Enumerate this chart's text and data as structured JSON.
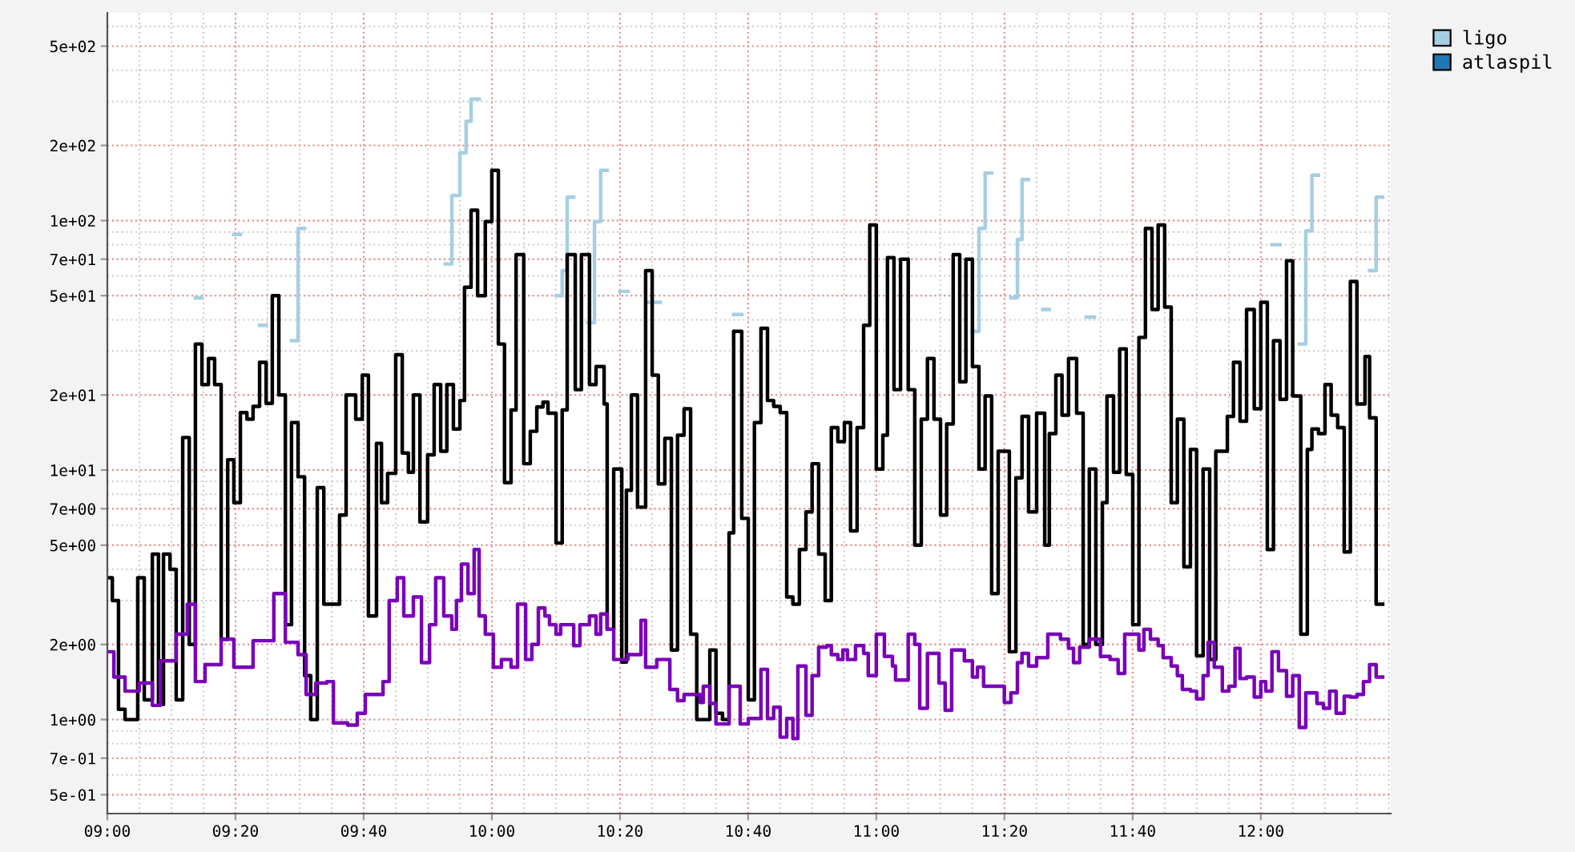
{
  "chart_data": {
    "type": "step",
    "log": "y",
    "grid": true,
    "legend": "top right",
    "line_style": "solid",
    "marker": "none",
    "xlim": [
      9.0,
      12.338
    ],
    "ylim": [
      0.42,
      680
    ],
    "xticks": [
      {
        "value": 9.0,
        "label": "09:00"
      },
      {
        "value": 9.3333,
        "label": "09:20"
      },
      {
        "value": 9.6667,
        "label": "09:40"
      },
      {
        "value": 10.0,
        "label": "10:00"
      },
      {
        "value": 10.3333,
        "label": "10:20"
      },
      {
        "value": 10.6667,
        "label": "10:40"
      },
      {
        "value": 11.0,
        "label": "11:00"
      },
      {
        "value": 11.3333,
        "label": "11:20"
      },
      {
        "value": 11.6667,
        "label": "11:40"
      },
      {
        "value": 12.0,
        "label": "12:00"
      }
    ],
    "yticks": [
      {
        "value": 0.5,
        "label": "5e-01"
      },
      {
        "value": 0.7,
        "label": "7e-01"
      },
      {
        "value": 1,
        "label": "1e+00"
      },
      {
        "value": 2,
        "label": "2e+00"
      },
      {
        "value": 5,
        "label": "5e+00"
      },
      {
        "value": 7,
        "label": "7e+00"
      },
      {
        "value": 10,
        "label": "1e+01"
      },
      {
        "value": 20,
        "label": "2e+01"
      },
      {
        "value": 50,
        "label": "5e+01"
      },
      {
        "value": 70,
        "label": "7e+01"
      },
      {
        "value": 100,
        "label": "1e+02"
      },
      {
        "value": 200,
        "label": "2e+02"
      },
      {
        "value": 500,
        "label": "5e+02"
      }
    ],
    "series": [
      {
        "name": "ligo",
        "color": "#a6cee3",
        "x": [
          9.229,
          9.246,
          9.329,
          9.346,
          9.396,
          9.413,
          9.479,
          9.496,
          9.513,
          9.879,
          9.896,
          9.917,
          9.933,
          9.946,
          9.967,
          10.167,
          10.183,
          10.196,
          10.213,
          10.25,
          10.267,
          10.283,
          10.3,
          10.333,
          10.354,
          10.408,
          10.438,
          10.629,
          10.65,
          11.25,
          11.267,
          11.283,
          11.3,
          11.35,
          11.367,
          11.379,
          11.396,
          11.433,
          11.45,
          11.546,
          11.567,
          12.029,
          12.05,
          12.1,
          12.117,
          12.133,
          12.15,
          12.283,
          12.3,
          12.317
        ],
        "values": [
          49,
          null,
          88,
          null,
          38,
          null,
          33,
          93,
          null,
          67,
          126,
          187,
          250,
          307,
          null,
          50,
          63,
          124,
          null,
          39,
          99,
          159,
          null,
          52,
          null,
          47,
          null,
          42,
          null,
          36,
          93,
          155,
          null,
          49,
          84,
          146,
          null,
          44,
          null,
          41,
          null,
          80,
          null,
          32,
          91,
          152,
          null,
          63,
          124,
          124
        ]
      },
      {
        "name": "atlaspil",
        "color": "#1f78b4"
      },
      {
        "color": "#000000",
        "x": [
          9.0,
          9.013,
          9.029,
          9.046,
          9.079,
          9.096,
          9.117,
          9.133,
          9.146,
          9.163,
          9.179,
          9.196,
          9.213,
          9.229,
          9.246,
          9.263,
          9.279,
          9.296,
          9.313,
          9.329,
          9.346,
          9.363,
          9.379,
          9.396,
          9.413,
          9.429,
          9.446,
          9.463,
          9.479,
          9.496,
          9.513,
          9.529,
          9.546,
          9.563,
          9.604,
          9.621,
          9.646,
          9.663,
          9.679,
          9.7,
          9.713,
          9.729,
          9.75,
          9.767,
          9.783,
          9.796,
          9.813,
          9.833,
          9.85,
          9.867,
          9.883,
          9.9,
          9.917,
          9.929,
          9.946,
          9.963,
          9.983,
          10.0,
          10.017,
          10.033,
          10.05,
          10.063,
          10.083,
          10.1,
          10.117,
          10.133,
          10.146,
          10.167,
          10.183,
          10.196,
          10.217,
          10.233,
          10.254,
          10.271,
          10.292,
          10.3,
          10.317,
          10.338,
          10.35,
          10.363,
          10.379,
          10.4,
          10.417,
          10.433,
          10.45,
          10.467,
          10.483,
          10.5,
          10.517,
          10.533,
          10.567,
          10.583,
          10.6,
          10.617,
          10.629,
          10.65,
          10.667,
          10.683,
          10.7,
          10.717,
          10.733,
          10.75,
          10.767,
          10.783,
          10.8,
          10.817,
          10.833,
          10.85,
          10.867,
          10.883,
          10.9,
          10.917,
          10.933,
          10.95,
          10.967,
          10.983,
          11.0,
          11.017,
          11.029,
          11.046,
          11.063,
          11.083,
          11.1,
          11.117,
          11.133,
          11.15,
          11.167,
          11.183,
          11.2,
          11.217,
          11.233,
          11.25,
          11.267,
          11.283,
          11.3,
          11.317,
          11.346,
          11.363,
          11.379,
          11.396,
          11.417,
          11.438,
          11.45,
          11.467,
          11.483,
          11.5,
          11.521,
          11.538,
          11.554,
          11.571,
          11.588,
          11.6,
          11.617,
          11.633,
          11.65,
          11.667,
          11.683,
          11.7,
          11.717,
          11.733,
          11.75,
          11.767,
          11.783,
          11.8,
          11.817,
          11.833,
          11.85,
          11.867,
          11.883,
          11.913,
          11.929,
          11.946,
          11.963,
          11.983,
          12.0,
          12.017,
          12.033,
          12.05,
          12.067,
          12.083,
          12.104,
          12.121,
          12.133,
          12.15,
          12.167,
          12.183,
          12.2,
          12.217,
          12.233,
          12.25,
          12.271,
          12.283,
          12.3,
          12.317
        ],
        "values": [
          3.7,
          3.0,
          1.1,
          1.0,
          3.7,
          1.2,
          4.6,
          1.15,
          4.6,
          4.0,
          1.2,
          13.5,
          2.0,
          32,
          22,
          28,
          22,
          2.1,
          11,
          7.4,
          17,
          16,
          18,
          27,
          18.5,
          50,
          20,
          2.4,
          15.5,
          9.4,
          1.5,
          1.0,
          8.5,
          2.9,
          6.6,
          20,
          16,
          24,
          2.6,
          12.8,
          7.4,
          9.7,
          29,
          11.7,
          9.8,
          20,
          6.2,
          11.5,
          22,
          11.9,
          22,
          14.6,
          19,
          54,
          110,
          50,
          99,
          159,
          32,
          8.9,
          17.4,
          73,
          10.6,
          14.3,
          17.9,
          18.7,
          16.9,
          5.1,
          17.4,
          73,
          21,
          73,
          22,
          26,
          18.4,
          2.3,
          10.1,
          1.7,
          8.3,
          20,
          7.1,
          63,
          24,
          8.8,
          13.4,
          1.9,
          13.8,
          17.6,
          2.2,
          1.0,
          1.9,
          1.06,
          1.0,
          5.6,
          36,
          6.4,
          1.2,
          15.5,
          37,
          19,
          18,
          17,
          3.1,
          2.9,
          4.8,
          6.8,
          10.6,
          4.6,
          3.0,
          14.8,
          13.0,
          15.5,
          5.7,
          14.8,
          38,
          96,
          10.1,
          13.8,
          71,
          21,
          70,
          21,
          5.0,
          16,
          28,
          16,
          6.6,
          15.3,
          73,
          22.6,
          70,
          26,
          10.1,
          19.8,
          3.2,
          11.9,
          1.87,
          9.3,
          16.4,
          6.8,
          16.9,
          5.0,
          14,
          24,
          16.6,
          28,
          16.9,
          2.0,
          10.1,
          2.0,
          7.4,
          19.8,
          9.8,
          30.6,
          9.6,
          2.4,
          34,
          93,
          44,
          96,
          45,
          7.4,
          16,
          4.1,
          12.1,
          1.8,
          10.1,
          1.74,
          11.9,
          16.4,
          27,
          15.7,
          44,
          17.6,
          47,
          4.8,
          33,
          19.2,
          69,
          19.8,
          2.2,
          12.1,
          14.6,
          14,
          22,
          16.6,
          14.8,
          4.7,
          57,
          18.4,
          28.5,
          16.2,
          2.9,
          2.9
        ]
      },
      {
        "color": "#7a00b8",
        "x": [
          9.0,
          9.017,
          9.046,
          9.083,
          9.117,
          9.138,
          9.179,
          9.208,
          9.229,
          9.254,
          9.296,
          9.329,
          9.379,
          9.433,
          9.463,
          9.496,
          9.517,
          9.542,
          9.571,
          9.588,
          9.625,
          9.65,
          9.671,
          9.717,
          9.733,
          9.754,
          9.771,
          9.796,
          9.817,
          9.838,
          9.854,
          9.875,
          9.896,
          9.908,
          9.921,
          9.938,
          9.954,
          9.967,
          9.983,
          10.004,
          10.025,
          10.05,
          10.067,
          10.088,
          10.104,
          10.121,
          10.138,
          10.15,
          10.167,
          10.179,
          10.213,
          10.229,
          10.254,
          10.271,
          10.283,
          10.3,
          10.317,
          10.354,
          10.388,
          10.4,
          10.429,
          10.463,
          10.483,
          10.5,
          10.542,
          10.55,
          10.567,
          10.583,
          10.617,
          10.646,
          10.667,
          10.7,
          10.717,
          10.733,
          10.75,
          10.767,
          10.783,
          10.796,
          10.817,
          10.833,
          10.85,
          10.871,
          10.883,
          10.9,
          10.913,
          10.925,
          10.946,
          10.967,
          10.979,
          11.0,
          11.021,
          11.042,
          11.05,
          11.083,
          11.1,
          11.113,
          11.133,
          11.163,
          11.179,
          11.196,
          11.229,
          11.25,
          11.263,
          11.279,
          11.333,
          11.35,
          11.367,
          11.379,
          11.396,
          11.417,
          11.446,
          11.479,
          11.5,
          11.513,
          11.529,
          11.554,
          11.583,
          11.608,
          11.629,
          11.646,
          11.683,
          11.696,
          11.713,
          11.733,
          11.746,
          11.767,
          11.783,
          11.796,
          11.817,
          11.833,
          11.85,
          11.863,
          11.879,
          11.9,
          11.917,
          11.933,
          11.946,
          11.963,
          11.983,
          12.0,
          12.013,
          12.029,
          12.046,
          12.067,
          12.083,
          12.1,
          12.117,
          12.146,
          12.163,
          12.179,
          12.196,
          12.217,
          12.233,
          12.25,
          12.267,
          12.283,
          12.3,
          12.317
        ],
        "values": [
          1.87,
          1.48,
          1.3,
          1.4,
          1.14,
          1.72,
          2.2,
          2.9,
          1.42,
          1.66,
          2.1,
          1.62,
          2.07,
          3.2,
          2.04,
          1.82,
          1.26,
          1.4,
          1.42,
          0.97,
          0.95,
          1.06,
          1.26,
          1.42,
          3.0,
          3.7,
          2.6,
          3.1,
          1.69,
          2.4,
          3.7,
          2.6,
          2.3,
          3.0,
          4.2,
          3.2,
          4.8,
          2.6,
          2.2,
          1.62,
          1.74,
          1.62,
          2.9,
          1.74,
          2.0,
          2.8,
          2.6,
          2.4,
          2.2,
          2.4,
          1.98,
          2.4,
          2.6,
          2.2,
          2.65,
          2.3,
          1.74,
          1.82,
          2.5,
          1.62,
          1.74,
          1.32,
          1.19,
          1.26,
          1.17,
          1.36,
          1.16,
          0.96,
          1.36,
          0.96,
          1.01,
          1.59,
          1.01,
          1.12,
          0.85,
          1.01,
          0.84,
          1.64,
          1.04,
          1.5,
          1.95,
          1.98,
          1.82,
          1.74,
          1.9,
          1.74,
          1.98,
          1.84,
          1.5,
          2.2,
          1.79,
          1.64,
          1.44,
          2.2,
          2.0,
          1.11,
          1.84,
          1.4,
          1.09,
          1.9,
          1.72,
          1.48,
          1.62,
          1.36,
          1.17,
          1.28,
          1.69,
          1.84,
          1.64,
          1.77,
          2.2,
          2.1,
          1.93,
          1.69,
          1.95,
          2.1,
          1.79,
          1.74,
          1.53,
          2.2,
          1.9,
          2.3,
          2.1,
          1.98,
          1.77,
          1.64,
          1.5,
          1.32,
          1.3,
          1.21,
          1.5,
          2.04,
          1.62,
          1.3,
          1.36,
          1.93,
          1.46,
          1.48,
          1.23,
          1.42,
          1.3,
          1.87,
          1.57,
          1.24,
          1.5,
          0.93,
          1.28,
          1.16,
          1.11,
          1.3,
          1.06,
          1.24,
          1.23,
          1.26,
          1.42,
          1.66,
          1.48,
          1.48
        ]
      }
    ]
  }
}
